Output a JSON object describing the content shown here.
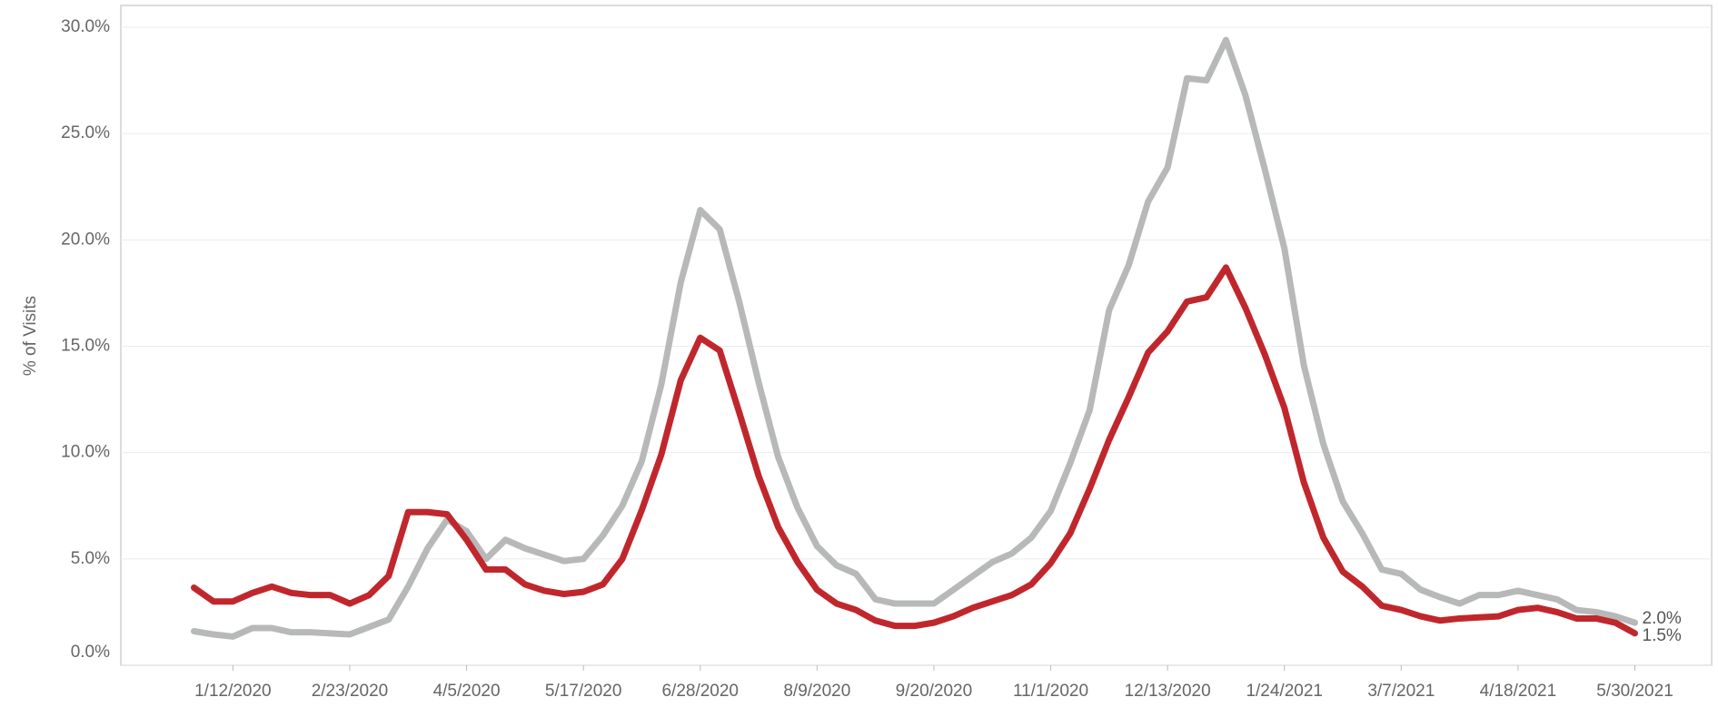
{
  "chart_data": {
    "type": "line",
    "y_label": "% of Visits",
    "x": [
      "12/29/2019",
      "1/5/2020",
      "1/12/2020",
      "1/19/2020",
      "1/26/2020",
      "2/2/2020",
      "2/9/2020",
      "2/16/2020",
      "2/23/2020",
      "3/1/2020",
      "3/8/2020",
      "3/15/2020",
      "3/22/2020",
      "3/29/2020",
      "4/5/2020",
      "4/12/2020",
      "4/19/2020",
      "4/26/2020",
      "5/3/2020",
      "5/10/2020",
      "5/17/2020",
      "5/24/2020",
      "5/31/2020",
      "6/7/2020",
      "6/14/2020",
      "6/21/2020",
      "6/28/2020",
      "7/5/2020",
      "7/12/2020",
      "7/19/2020",
      "7/26/2020",
      "8/2/2020",
      "8/9/2020",
      "8/16/2020",
      "8/23/2020",
      "8/30/2020",
      "9/6/2020",
      "9/13/2020",
      "9/20/2020",
      "9/27/2020",
      "10/4/2020",
      "10/11/2020",
      "10/18/2020",
      "10/25/2020",
      "11/1/2020",
      "11/8/2020",
      "11/15/2020",
      "11/22/2020",
      "11/29/2020",
      "12/6/2020",
      "12/13/2020",
      "12/20/2020",
      "12/27/2020",
      "1/3/2021",
      "1/10/2021",
      "1/17/2021",
      "1/24/2021",
      "1/31/2021",
      "2/7/2021",
      "2/14/2021",
      "2/21/2021",
      "2/28/2021",
      "3/7/2021",
      "3/14/2021",
      "3/21/2021",
      "3/28/2021",
      "4/4/2021",
      "4/11/2021",
      "4/18/2021",
      "4/25/2021",
      "5/2/2021",
      "5/9/2021",
      "5/16/2021",
      "5/23/2021",
      "5/30/2021"
    ],
    "xticks": [
      "1/12/2020",
      "2/23/2020",
      "4/5/2020",
      "5/17/2020",
      "6/28/2020",
      "8/9/2020",
      "9/20/2020",
      "11/1/2020",
      "12/13/2020",
      "1/24/2021",
      "3/7/2021",
      "4/18/2021",
      "5/30/2021"
    ],
    "ylim": [
      0,
      30
    ],
    "yticks": [
      {
        "value": 0,
        "label": "0.0%"
      },
      {
        "value": 5,
        "label": "5.0%"
      },
      {
        "value": 10,
        "label": "10.0%"
      },
      {
        "value": 15,
        "label": "15.0%"
      },
      {
        "value": 20,
        "label": "20.0%"
      },
      {
        "value": 25,
        "label": "25.0%"
      },
      {
        "value": 30,
        "label": "30.0%"
      }
    ],
    "grid": true,
    "series": [
      {
        "color": "#b7b9b8",
        "values": [
          1.6,
          1.45,
          1.35,
          1.75,
          1.75,
          1.55,
          1.55,
          1.5,
          1.45,
          1.8,
          2.15,
          3.7,
          5.5,
          6.85,
          6.3,
          5.0,
          5.9,
          5.5,
          5.2,
          4.9,
          5.0,
          6.1,
          7.5,
          9.6,
          13.2,
          18.0,
          21.4,
          20.5,
          17.1,
          13.3,
          9.8,
          7.4,
          5.6,
          4.7,
          4.3,
          3.1,
          2.9,
          2.9,
          2.9,
          3.55,
          4.2,
          4.85,
          5.25,
          6.0,
          7.25,
          9.5,
          12.0,
          16.7,
          18.8,
          21.8,
          23.4,
          27.6,
          27.5,
          29.4,
          26.8,
          23.3,
          19.6,
          14.1,
          10.4,
          7.7,
          6.2,
          4.5,
          4.3,
          3.55,
          3.2,
          2.9,
          3.3,
          3.3,
          3.5,
          3.3,
          3.1,
          2.6,
          2.5,
          2.3,
          2.0
        ],
        "value_labels": [
          null,
          null,
          null,
          null,
          null,
          null,
          null,
          null,
          null,
          null,
          null,
          null,
          null,
          null,
          null,
          null,
          null,
          null,
          null,
          null,
          null,
          null,
          null,
          null,
          null,
          null,
          null,
          null,
          null,
          null,
          null,
          null,
          null,
          null,
          null,
          null,
          null,
          null,
          null,
          null,
          null,
          null,
          null,
          null,
          null,
          null,
          null,
          null,
          null,
          null,
          null,
          null,
          null,
          null,
          null,
          null,
          null,
          null,
          null,
          null,
          null,
          null,
          null,
          null,
          null,
          null,
          null,
          null,
          null,
          null,
          null,
          null,
          null,
          null,
          "2.0%"
        ]
      },
      {
        "color": "#c0272d",
        "values": [
          3.65,
          3.0,
          3.0,
          3.4,
          3.7,
          3.4,
          3.3,
          3.3,
          2.9,
          3.3,
          4.2,
          7.2,
          7.2,
          7.1,
          5.9,
          4.5,
          4.5,
          3.8,
          3.5,
          3.35,
          3.45,
          3.8,
          5.0,
          7.3,
          9.9,
          13.4,
          15.4,
          14.8,
          11.9,
          8.9,
          6.5,
          4.85,
          3.55,
          2.9,
          2.6,
          2.1,
          1.85,
          1.85,
          2.0,
          2.3,
          2.7,
          3.0,
          3.3,
          3.8,
          4.8,
          6.2,
          8.3,
          10.6,
          12.6,
          14.7,
          15.7,
          17.1,
          17.3,
          18.7,
          16.8,
          14.6,
          12.1,
          8.6,
          6.0,
          4.4,
          3.7,
          2.8,
          2.6,
          2.3,
          2.1,
          2.2,
          2.25,
          2.3,
          2.6,
          2.7,
          2.5,
          2.2,
          2.2,
          2.0,
          1.5
        ],
        "value_labels": [
          null,
          null,
          null,
          null,
          null,
          null,
          null,
          null,
          null,
          null,
          null,
          null,
          null,
          null,
          null,
          null,
          null,
          null,
          null,
          null,
          null,
          null,
          null,
          null,
          null,
          null,
          null,
          null,
          null,
          null,
          null,
          null,
          null,
          null,
          null,
          null,
          null,
          null,
          null,
          null,
          null,
          null,
          null,
          null,
          null,
          null,
          null,
          null,
          null,
          null,
          null,
          null,
          null,
          null,
          null,
          null,
          null,
          null,
          null,
          null,
          null,
          null,
          null,
          null,
          null,
          null,
          null,
          null,
          null,
          null,
          null,
          null,
          null,
          null,
          "1.5%"
        ]
      }
    ]
  }
}
